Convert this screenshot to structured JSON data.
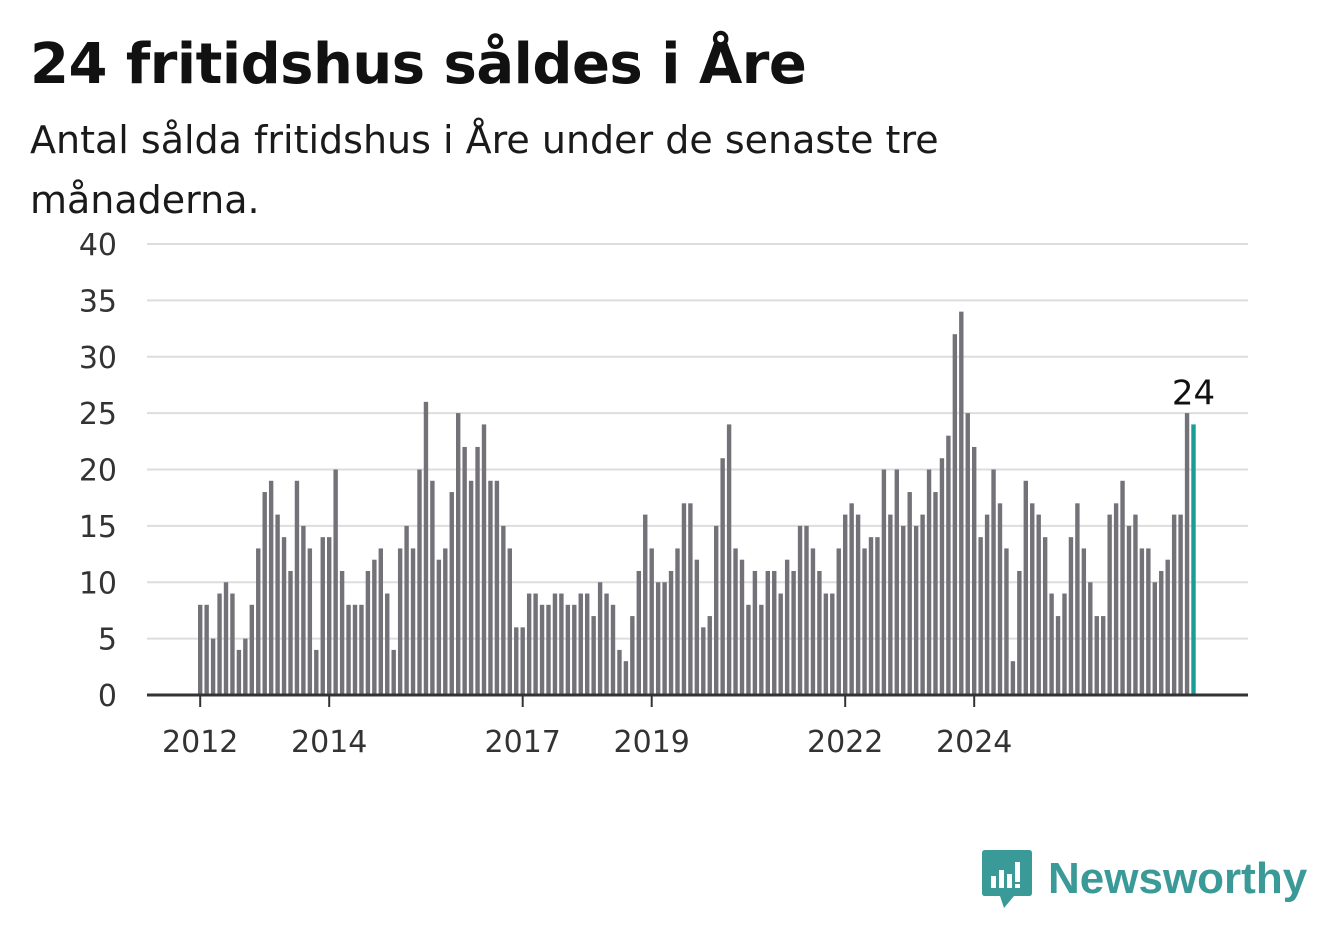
{
  "title": "24 fritidshus såldes i Åre",
  "subtitle": "Antal sålda fritidshus i Åre under de senaste tre månaderna.",
  "brand": {
    "name": "Newsworthy",
    "icon": "newsworthy-logo-icon",
    "color": "#3a9a97"
  },
  "colors": {
    "bar": "#737278",
    "highlight": "#1a9e94",
    "grid": "#dddddd",
    "axis": "#333333"
  },
  "chart_data": {
    "type": "bar",
    "title": "24 fritidshus såldes i Åre",
    "subtitle": "Antal sålda fritidshus i Åre under de senaste tre månaderna.",
    "xlabel": "",
    "ylabel": "",
    "ylim": [
      0,
      40
    ],
    "yticks": [
      0,
      5,
      10,
      15,
      20,
      25,
      30,
      35,
      40
    ],
    "grid": true,
    "x_tick_labels": [
      "2012",
      "2014",
      "2017",
      "2019",
      "2022",
      "2024"
    ],
    "x_tick_indices": [
      0,
      20,
      50,
      70,
      100,
      120
    ],
    "values": [
      8,
      8,
      5,
      9,
      10,
      9,
      4,
      5,
      8,
      13,
      18,
      19,
      16,
      14,
      11,
      19,
      15,
      13,
      4,
      14,
      14,
      20,
      11,
      8,
      8,
      8,
      11,
      12,
      13,
      9,
      4,
      13,
      15,
      13,
      20,
      26,
      19,
      12,
      13,
      18,
      25,
      22,
      19,
      22,
      24,
      19,
      19,
      15,
      13,
      6,
      6,
      9,
      9,
      8,
      8,
      9,
      9,
      8,
      8,
      9,
      9,
      7,
      10,
      9,
      8,
      4,
      3,
      7,
      11,
      16,
      13,
      10,
      10,
      11,
      13,
      17,
      17,
      12,
      6,
      7,
      15,
      21,
      24,
      13,
      12,
      8,
      11,
      8,
      11,
      11,
      9,
      12,
      11,
      15,
      15,
      13,
      11,
      9,
      9,
      13,
      16,
      17,
      16,
      13,
      14,
      14,
      20,
      16,
      20,
      15,
      18,
      15,
      16,
      20,
      18,
      21,
      23,
      32,
      34,
      25,
      22,
      14,
      16,
      20,
      17,
      13,
      3,
      11,
      19,
      17,
      16,
      14,
      9,
      7,
      9,
      14,
      17,
      13,
      10,
      7,
      7,
      16,
      17,
      19,
      15,
      16,
      13,
      13,
      10,
      11,
      12,
      16,
      16,
      25,
      24
    ],
    "highlight_last": true,
    "annotations": [
      {
        "index": 154,
        "text": "24"
      }
    ]
  }
}
